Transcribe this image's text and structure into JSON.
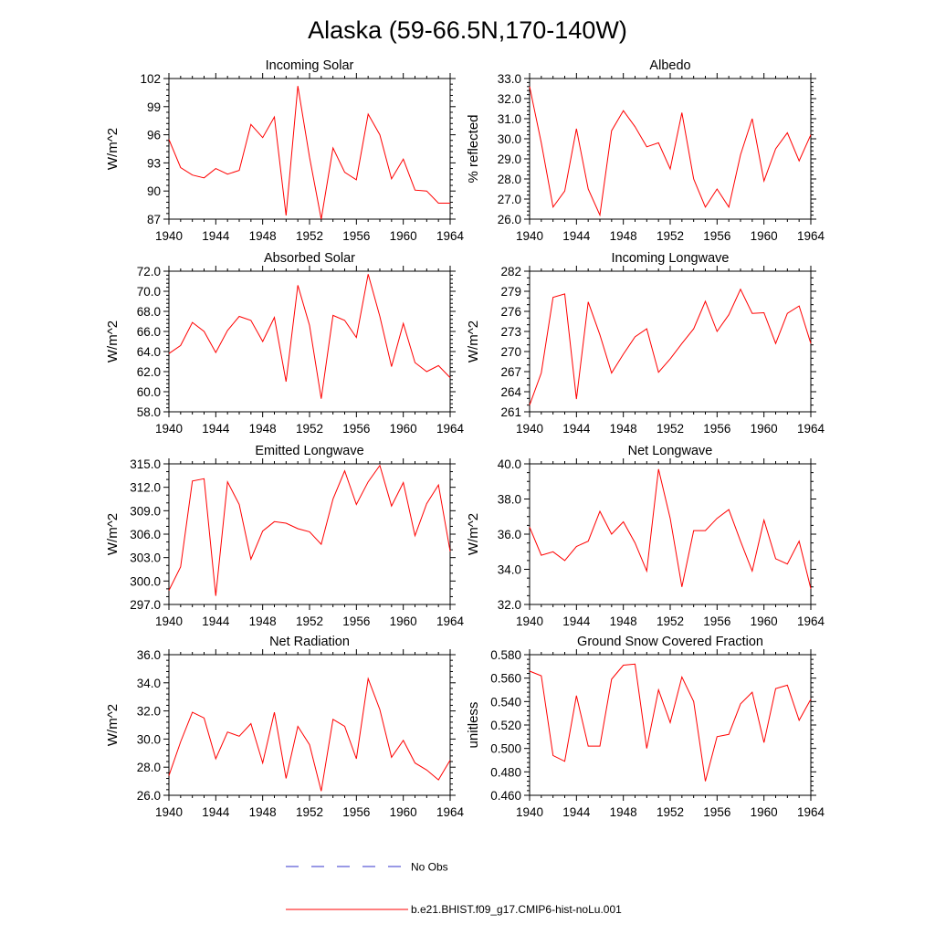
{
  "title": "Alaska (59-66.5N,170-140W)",
  "legend": [
    {
      "label": "No Obs",
      "color": "#3333cc",
      "dash": true
    },
    {
      "label": "b.e21.BHIST.f09_g17.CMIP6-hist-noLu.001",
      "color": "#ff0000",
      "dash": false
    }
  ],
  "chart_data": [
    {
      "type": "line",
      "title": "Incoming Solar",
      "ylabel": "W/m^2",
      "xlim": [
        1940,
        1964
      ],
      "ylim": [
        87,
        102
      ],
      "xticks": [
        "1940",
        "1944",
        "1948",
        "1952",
        "1956",
        "1960",
        "1964"
      ],
      "yticks": [
        "87",
        "90",
        "93",
        "96",
        "99",
        "102"
      ],
      "x": [
        1940,
        1941,
        1942,
        1943,
        1944,
        1945,
        1946,
        1947,
        1948,
        1949,
        1950,
        1951,
        1952,
        1953,
        1954,
        1955,
        1956,
        1957,
        1958,
        1959,
        1960,
        1961,
        1962,
        1963,
        1964
      ],
      "series": [
        {
          "values": [
            95.5,
            92.5,
            91.7,
            91.4,
            92.4,
            91.8,
            92.2,
            97.1,
            95.7,
            97.9,
            87.4,
            101.2,
            93.6,
            87.0,
            94.6,
            92.0,
            91.2,
            98.2,
            96.0,
            91.3,
            93.4,
            90.1,
            90.0,
            88.7,
            88.7
          ]
        }
      ]
    },
    {
      "type": "line",
      "title": "Albedo",
      "ylabel": "% reflected",
      "xlim": [
        1940,
        1964
      ],
      "ylim": [
        26.0,
        33.0
      ],
      "xticks": [
        "1940",
        "1944",
        "1948",
        "1952",
        "1956",
        "1960",
        "1964"
      ],
      "yticks": [
        "26.0",
        "27.0",
        "28.0",
        "29.0",
        "30.0",
        "31.0",
        "32.0",
        "33.0"
      ],
      "x": [
        1940,
        1941,
        1942,
        1943,
        1944,
        1945,
        1946,
        1947,
        1948,
        1949,
        1950,
        1951,
        1952,
        1953,
        1954,
        1955,
        1956,
        1957,
        1958,
        1959,
        1960,
        1961,
        1962,
        1963,
        1964
      ],
      "series": [
        {
          "values": [
            32.6,
            29.8,
            26.6,
            27.4,
            30.5,
            27.5,
            26.2,
            30.4,
            31.4,
            30.6,
            29.6,
            29.8,
            28.5,
            31.3,
            28.0,
            26.6,
            27.5,
            26.6,
            29.2,
            31.0,
            27.9,
            29.5,
            30.3,
            28.9,
            30.2
          ]
        }
      ]
    },
    {
      "type": "line",
      "title": "Absorbed Solar",
      "ylabel": "W/m^2",
      "xlim": [
        1940,
        1964
      ],
      "ylim": [
        58.0,
        72.0
      ],
      "xticks": [
        "1940",
        "1944",
        "1948",
        "1952",
        "1956",
        "1960",
        "1964"
      ],
      "yticks": [
        "58.0",
        "60.0",
        "62.0",
        "64.0",
        "66.0",
        "68.0",
        "70.0",
        "72.0"
      ],
      "x": [
        1940,
        1941,
        1942,
        1943,
        1944,
        1945,
        1946,
        1947,
        1948,
        1949,
        1950,
        1951,
        1952,
        1953,
        1954,
        1955,
        1956,
        1957,
        1958,
        1959,
        1960,
        1961,
        1962,
        1963,
        1964
      ],
      "series": [
        {
          "values": [
            63.8,
            64.6,
            66.9,
            66.0,
            63.9,
            66.1,
            67.5,
            67.1,
            65.0,
            67.4,
            61.0,
            70.6,
            66.6,
            59.3,
            67.6,
            67.1,
            65.4,
            71.7,
            67.5,
            62.5,
            66.8,
            62.9,
            62.0,
            62.6,
            61.4
          ]
        }
      ]
    },
    {
      "type": "line",
      "title": "Incoming Longwave",
      "ylabel": "W/m^2",
      "xlim": [
        1940,
        1964
      ],
      "ylim": [
        261,
        282
      ],
      "xticks": [
        "1940",
        "1944",
        "1948",
        "1952",
        "1956",
        "1960",
        "1964"
      ],
      "yticks": [
        "261",
        "264",
        "267",
        "270",
        "273",
        "276",
        "279",
        "282"
      ],
      "x": [
        1940,
        1941,
        1942,
        1943,
        1944,
        1945,
        1946,
        1947,
        1948,
        1949,
        1950,
        1951,
        1952,
        1953,
        1954,
        1955,
        1956,
        1957,
        1958,
        1959,
        1960,
        1961,
        1962,
        1963,
        1964
      ],
      "series": [
        {
          "values": [
            262.0,
            266.8,
            278.1,
            278.6,
            262.9,
            277.4,
            272.5,
            266.8,
            269.6,
            272.2,
            273.4,
            266.9,
            268.9,
            271.2,
            273.4,
            277.5,
            273.0,
            275.5,
            279.3,
            275.7,
            275.8,
            271.2,
            275.7,
            276.8,
            271.2
          ]
        }
      ]
    },
    {
      "type": "line",
      "title": "Emitted Longwave",
      "ylabel": "W/m^2",
      "xlim": [
        1940,
        1964
      ],
      "ylim": [
        297.0,
        315.0
      ],
      "xticks": [
        "1940",
        "1944",
        "1948",
        "1952",
        "1956",
        "1960",
        "1964"
      ],
      "yticks": [
        "297.0",
        "300.0",
        "303.0",
        "306.0",
        "309.0",
        "312.0",
        "315.0"
      ],
      "x": [
        1940,
        1941,
        1942,
        1943,
        1944,
        1945,
        1946,
        1947,
        1948,
        1949,
        1950,
        1951,
        1952,
        1953,
        1954,
        1955,
        1956,
        1957,
        1958,
        1959,
        1960,
        1961,
        1962,
        1963,
        1964
      ],
      "series": [
        {
          "values": [
            298.8,
            301.8,
            312.8,
            313.1,
            298.1,
            312.7,
            309.8,
            302.8,
            306.4,
            307.6,
            307.4,
            306.7,
            306.3,
            304.7,
            310.5,
            314.1,
            309.8,
            312.7,
            314.8,
            309.6,
            312.6,
            305.8,
            309.9,
            312.3,
            303.8
          ]
        }
      ]
    },
    {
      "type": "line",
      "title": "Net Longwave",
      "ylabel": "W/m^2",
      "xlim": [
        1940,
        1964
      ],
      "ylim": [
        32.0,
        40.0
      ],
      "xticks": [
        "1940",
        "1944",
        "1948",
        "1952",
        "1956",
        "1960",
        "1964"
      ],
      "yticks": [
        "32.0",
        "34.0",
        "36.0",
        "38.0",
        "40.0"
      ],
      "x": [
        1940,
        1941,
        1942,
        1943,
        1944,
        1945,
        1946,
        1947,
        1948,
        1949,
        1950,
        1951,
        1952,
        1953,
        1954,
        1955,
        1956,
        1957,
        1958,
        1959,
        1960,
        1961,
        1962,
        1963,
        1964
      ],
      "series": [
        {
          "values": [
            36.4,
            34.8,
            35.0,
            34.5,
            35.3,
            35.6,
            37.3,
            36.0,
            36.7,
            35.5,
            33.9,
            39.7,
            36.9,
            33.0,
            36.2,
            36.2,
            36.9,
            37.4,
            35.6,
            33.9,
            36.8,
            34.6,
            34.3,
            35.6,
            32.9
          ]
        }
      ]
    },
    {
      "type": "line",
      "title": "Net Radiation",
      "ylabel": "W/m^2",
      "xlim": [
        1940,
        1964
      ],
      "ylim": [
        26.0,
        36.0
      ],
      "xticks": [
        "1940",
        "1944",
        "1948",
        "1952",
        "1956",
        "1960",
        "1964"
      ],
      "yticks": [
        "26.0",
        "28.0",
        "30.0",
        "32.0",
        "34.0",
        "36.0"
      ],
      "x": [
        1940,
        1941,
        1942,
        1943,
        1944,
        1945,
        1946,
        1947,
        1948,
        1949,
        1950,
        1951,
        1952,
        1953,
        1954,
        1955,
        1956,
        1957,
        1958,
        1959,
        1960,
        1961,
        1962,
        1963,
        1964
      ],
      "series": [
        {
          "values": [
            27.4,
            29.8,
            31.9,
            31.5,
            28.6,
            30.5,
            30.2,
            31.1,
            28.3,
            31.9,
            27.2,
            30.9,
            29.6,
            26.3,
            31.4,
            30.9,
            28.6,
            34.3,
            32.1,
            28.7,
            29.9,
            28.3,
            27.8,
            27.1,
            28.5
          ]
        }
      ]
    },
    {
      "type": "line",
      "title": "Ground Snow Covered Fraction",
      "ylabel": "unitless",
      "xlim": [
        1940,
        1964
      ],
      "ylim": [
        0.46,
        0.58
      ],
      "xticks": [
        "1940",
        "1944",
        "1948",
        "1952",
        "1956",
        "1960",
        "1964"
      ],
      "yticks": [
        "0.460",
        "0.480",
        "0.500",
        "0.520",
        "0.540",
        "0.560",
        "0.580"
      ],
      "x": [
        1940,
        1941,
        1942,
        1943,
        1944,
        1945,
        1946,
        1947,
        1948,
        1949,
        1950,
        1951,
        1952,
        1953,
        1954,
        1955,
        1956,
        1957,
        1958,
        1959,
        1960,
        1961,
        1962,
        1963,
        1964
      ],
      "series": [
        {
          "values": [
            0.566,
            0.562,
            0.494,
            0.489,
            0.545,
            0.502,
            0.502,
            0.559,
            0.571,
            0.572,
            0.5,
            0.55,
            0.522,
            0.561,
            0.54,
            0.472,
            0.51,
            0.512,
            0.538,
            0.548,
            0.505,
            0.551,
            0.554,
            0.524,
            0.542
          ]
        }
      ]
    }
  ]
}
